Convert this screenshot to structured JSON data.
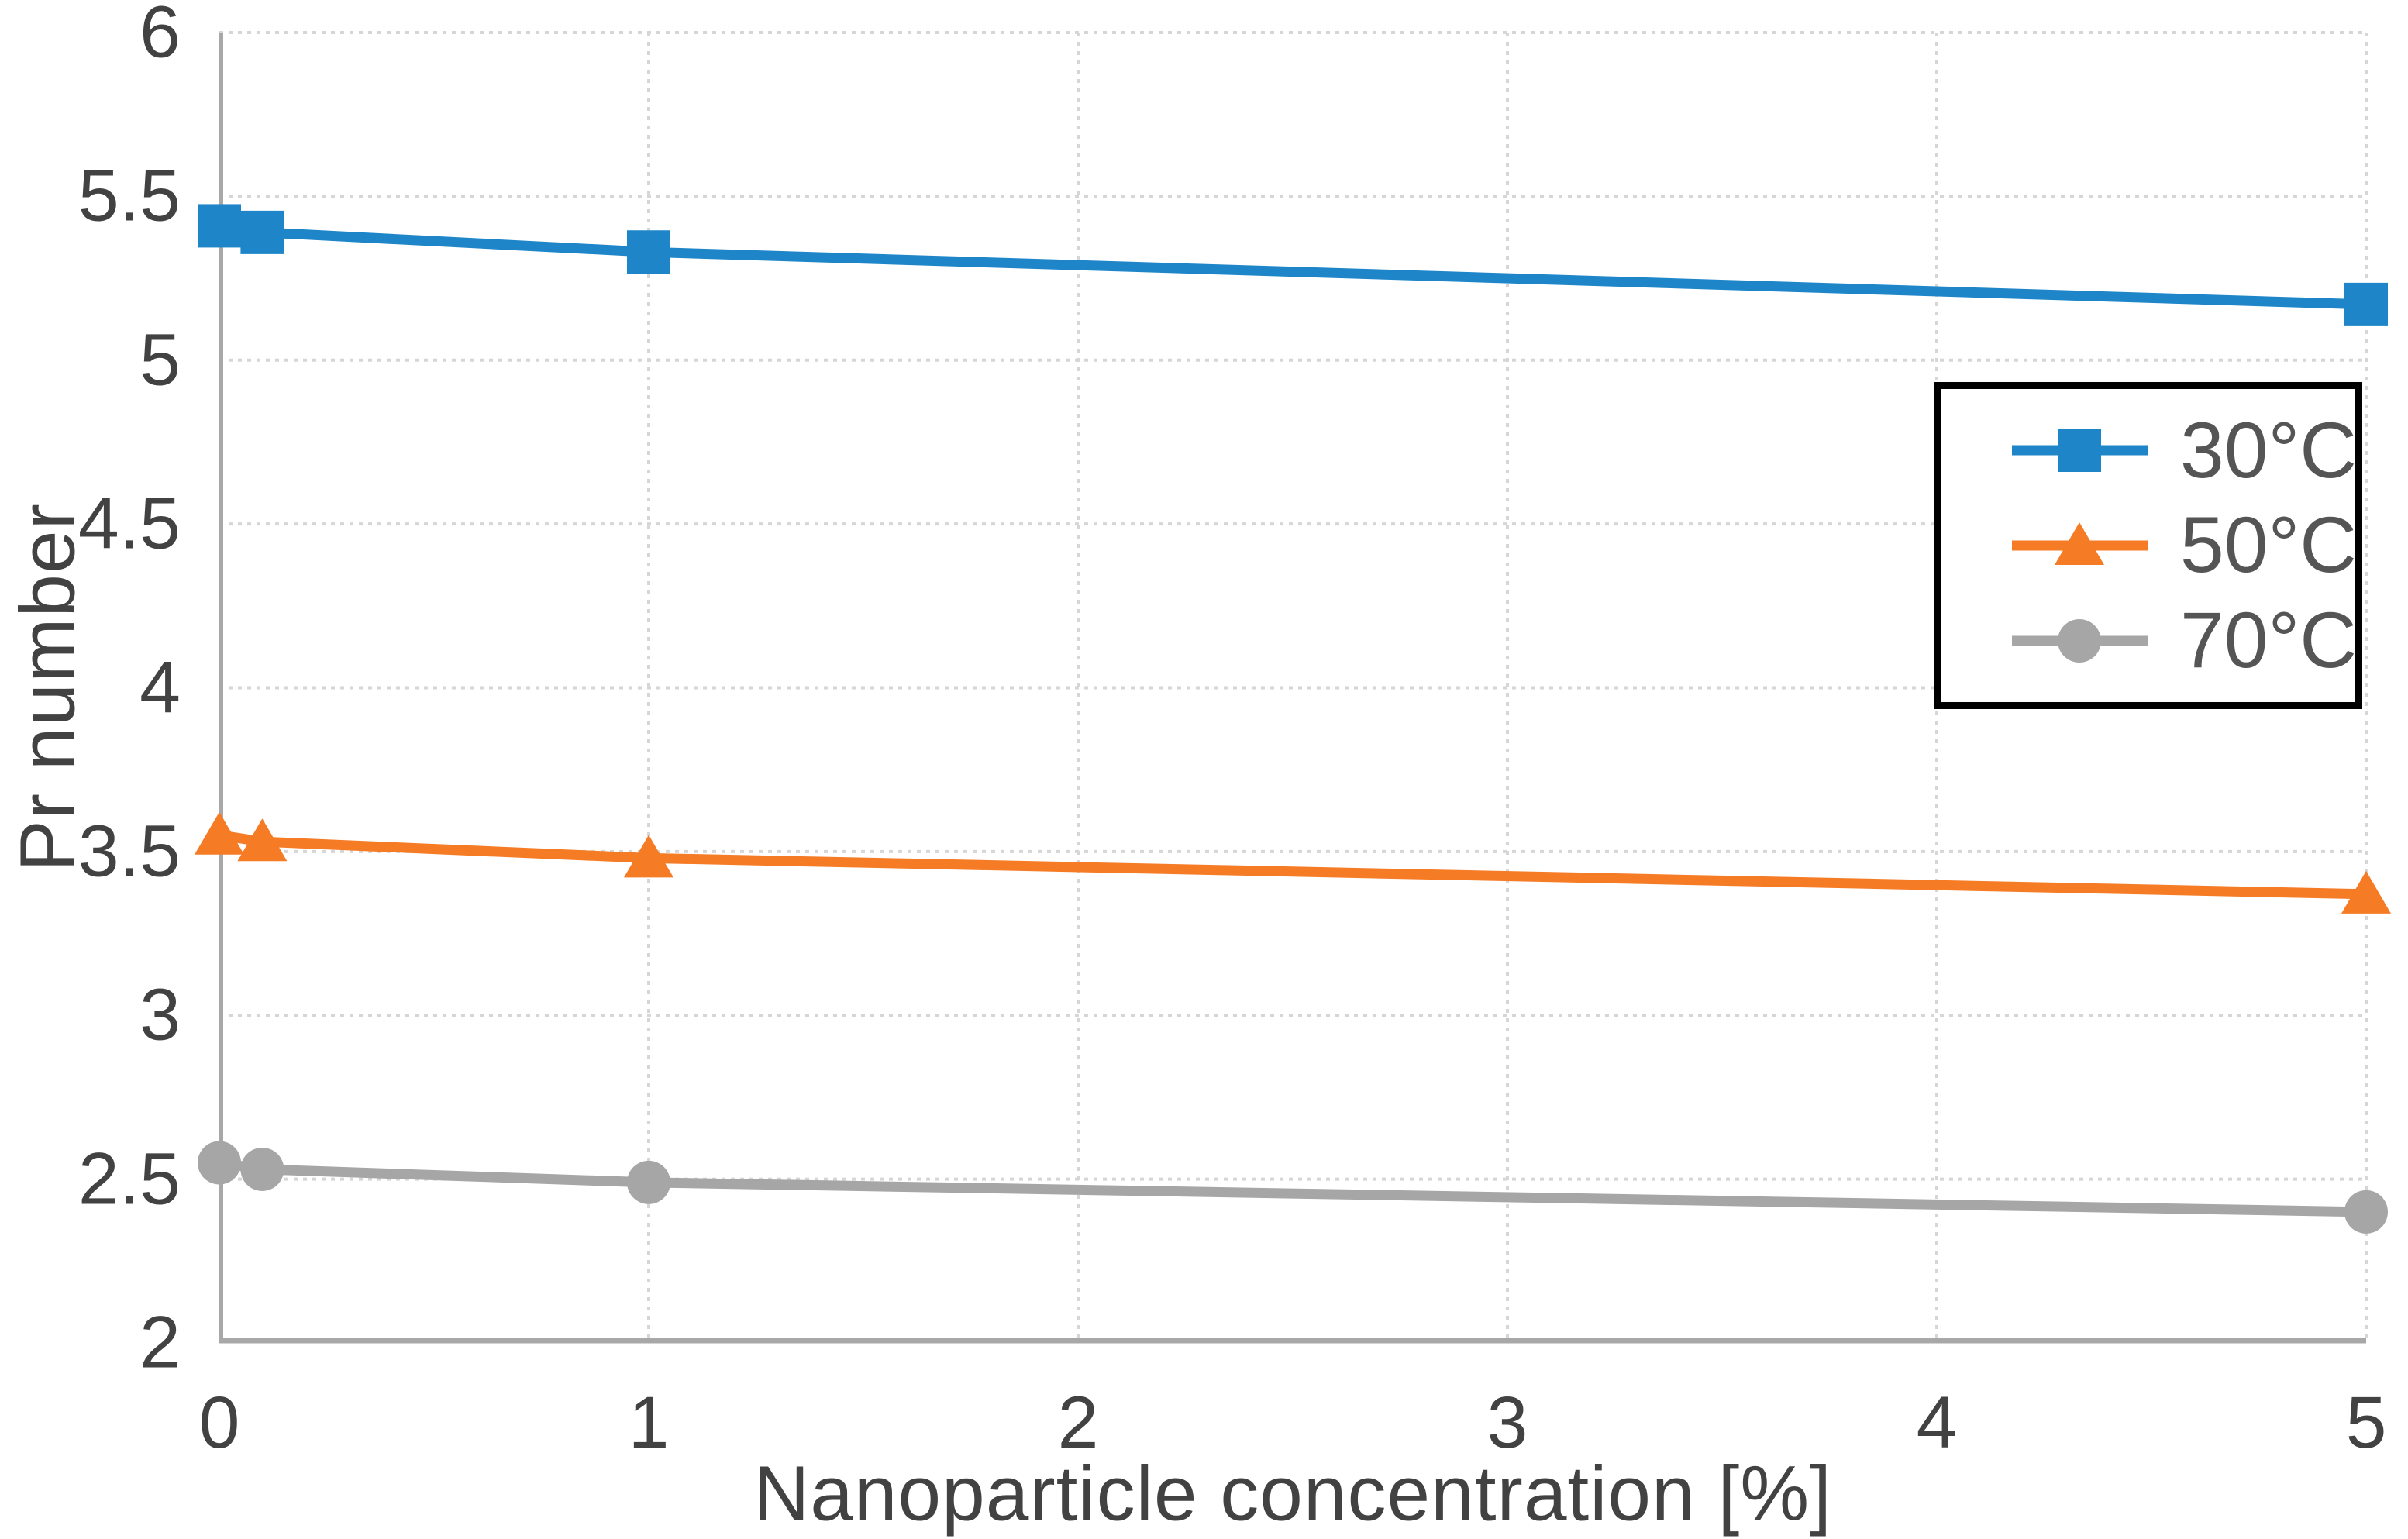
{
  "chart_data": {
    "type": "line",
    "title": "",
    "xlabel": "Nanoparticle concentration [%]",
    "ylabel": "Pr number",
    "x": [
      0,
      0.1,
      1,
      5
    ],
    "series": [
      {
        "name": "30°C",
        "marker": "square",
        "color": "#1E86C8",
        "values": [
          5.41,
          5.39,
          5.33,
          5.17
        ]
      },
      {
        "name": "50°C",
        "marker": "triangle",
        "color": "#F57B25",
        "values": [
          3.55,
          3.53,
          3.48,
          3.37
        ]
      },
      {
        "name": "70°C",
        "marker": "circle",
        "color": "#A6A6A6",
        "values": [
          2.55,
          2.53,
          2.49,
          2.4
        ]
      }
    ],
    "xlim": [
      0,
      5
    ],
    "ylim": [
      2,
      6
    ],
    "xticks": [
      0,
      1,
      2,
      3,
      4,
      5
    ],
    "xtick_labels": [
      "0",
      "1",
      "2",
      "3",
      "4",
      "5"
    ],
    "yticks": [
      2,
      2.5,
      3,
      3.5,
      4,
      4.5,
      5,
      5.5,
      6
    ],
    "ytick_labels": [
      "2",
      "2.5",
      "3",
      "3.5",
      "4",
      "4.5",
      "5",
      "5.5",
      "6"
    ],
    "grid": "dotted",
    "gridline_color": "#D6D6D6",
    "axis_line_color": "#A8A8A8",
    "tick_text_color": "#424242",
    "legend_position": "upper-right",
    "legend_border_color": "#000000"
  }
}
